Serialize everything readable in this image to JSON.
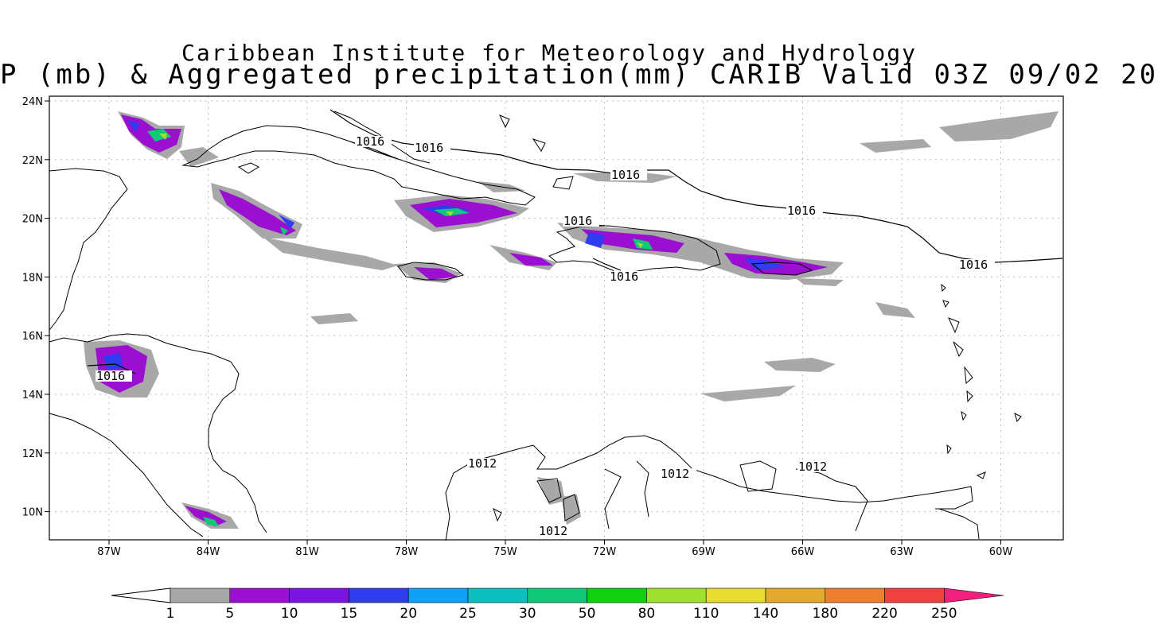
{
  "title": {
    "line1": "Caribbean Institute for Meteorology and Hydrology",
    "line2": "P (mb) & Aggregated precipitation(mm) CARIB Valid 03Z 09/02 20"
  },
  "map": {
    "lon_labels": [
      "87W",
      "84W",
      "81W",
      "78W",
      "75W",
      "72W",
      "69W",
      "66W",
      "63W",
      "60W"
    ],
    "lat_labels": [
      "24N",
      "22N",
      "20N",
      "18N",
      "16N",
      "14N",
      "12N",
      "10N"
    ],
    "isobar_labels": [
      "1016",
      "1016",
      "1016",
      "1016",
      "1016",
      "1016",
      "1016",
      "1012",
      "1012",
      "1012",
      "1012"
    ],
    "grid": true
  },
  "colorbar": {
    "labels": [
      "1",
      "5",
      "10",
      "15",
      "20",
      "25",
      "30",
      "50",
      "80",
      "110",
      "140",
      "180",
      "220",
      "250"
    ],
    "colors": [
      "#a8a8a8",
      "#9b10d0",
      "#7a14e0",
      "#2f3cf0",
      "#10a0f5",
      "#0cc0c0",
      "#10c878",
      "#10d010",
      "#a0e030",
      "#e8dc30",
      "#e4aa30",
      "#ec8030",
      "#f04040",
      "#f0207c"
    ]
  }
}
